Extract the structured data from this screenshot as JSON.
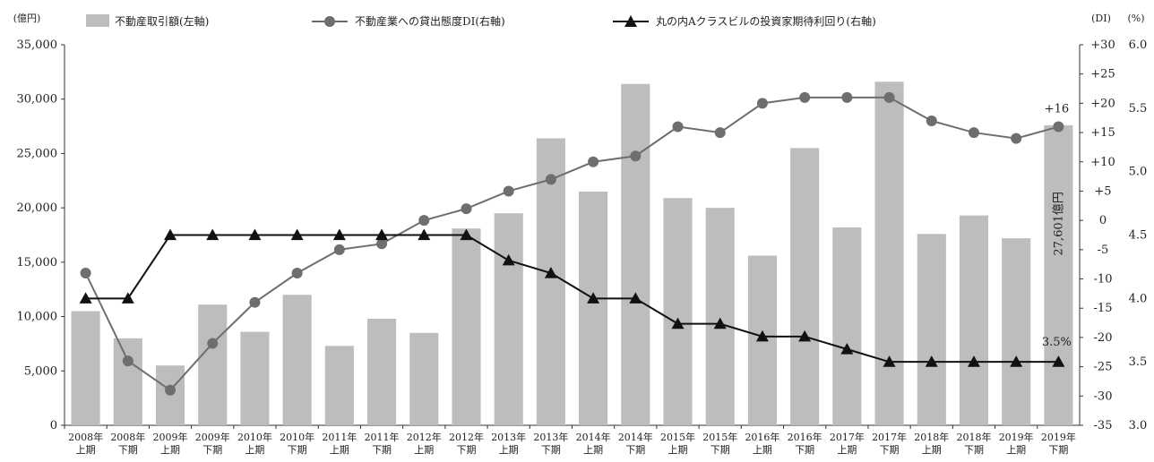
{
  "chart_data": {
    "type": "bar",
    "categories": [
      [
        "2008年",
        "上期"
      ],
      [
        "2008年",
        "下期"
      ],
      [
        "2009年",
        "上期"
      ],
      [
        "2009年",
        "下期"
      ],
      [
        "2010年",
        "上期"
      ],
      [
        "2010年",
        "下期"
      ],
      [
        "2011年",
        "上期"
      ],
      [
        "2011年",
        "下期"
      ],
      [
        "2012年",
        "上期"
      ],
      [
        "2012年",
        "下期"
      ],
      [
        "2013年",
        "上期"
      ],
      [
        "2013年",
        "下期"
      ],
      [
        "2014年",
        "上期"
      ],
      [
        "2014年",
        "下期"
      ],
      [
        "2015年",
        "上期"
      ],
      [
        "2015年",
        "下期"
      ],
      [
        "2016年",
        "上期"
      ],
      [
        "2016年",
        "下期"
      ],
      [
        "2017年",
        "上期"
      ],
      [
        "2017年",
        "下期"
      ],
      [
        "2018年",
        "上期"
      ],
      [
        "2018年",
        "下期"
      ],
      [
        "2019年",
        "上期"
      ],
      [
        "2019年",
        "下期"
      ]
    ],
    "series": [
      {
        "name": "不動産取引額(左軸)",
        "axis": "left",
        "type": "bar",
        "color": "#bdbdbd",
        "values": [
          10500,
          8000,
          5500,
          11100,
          8600,
          12000,
          7300,
          9800,
          8500,
          18100,
          19500,
          26400,
          21500,
          31400,
          20900,
          20000,
          15600,
          25500,
          18200,
          31600,
          17600,
          19300,
          17200,
          27601
        ]
      },
      {
        "name": "不動産業への貸出態度DI(右軸)",
        "axis": "right_di",
        "type": "line",
        "marker": "circle",
        "color": "#6e6e6e",
        "values": [
          -9,
          -24,
          -29,
          -21,
          -14,
          -9,
          -5,
          -4,
          0,
          2,
          5,
          7,
          10,
          11,
          16,
          15,
          20,
          21,
          21,
          21,
          17,
          15,
          14,
          16
        ]
      },
      {
        "name": "丸の内Aクラスビルの投資家期待利回り(右軸)",
        "axis": "right_pct",
        "type": "line",
        "marker": "triangle",
        "color": "#111111",
        "values": [
          4.0,
          4.0,
          4.5,
          4.5,
          4.5,
          4.5,
          4.5,
          4.5,
          4.5,
          4.5,
          4.3,
          4.2,
          4.0,
          4.0,
          3.8,
          3.8,
          3.7,
          3.7,
          3.6,
          3.5,
          3.5,
          3.5,
          3.5,
          3.5
        ]
      }
    ],
    "axes": {
      "left": {
        "unit": "(億円)",
        "min": 0,
        "max": 35000,
        "ticks": [
          "0",
          "5,000",
          "10,000",
          "15,000",
          "20,000",
          "25,000",
          "30,000",
          "35,000"
        ]
      },
      "right_di": {
        "unit": "(DI)",
        "min": -35,
        "max": 30,
        "ticks": [
          "-35",
          "-30",
          "-25",
          "-20",
          "-15",
          "-10",
          "-5",
          "0",
          "+5",
          "+10",
          "+15",
          "+20",
          "+25",
          "+30"
        ]
      },
      "right_pct": {
        "unit": "(%)",
        "min": 3.0,
        "max": 6.0,
        "ticks": [
          "3.0",
          "3.5",
          "4.0",
          "4.5",
          "5.0",
          "5.5",
          "6.0"
        ]
      }
    },
    "annotations": {
      "last_bar": "27,601億円",
      "last_di": "+16",
      "last_yield": "3.5%"
    },
    "legend_position": "top",
    "grid": false
  }
}
